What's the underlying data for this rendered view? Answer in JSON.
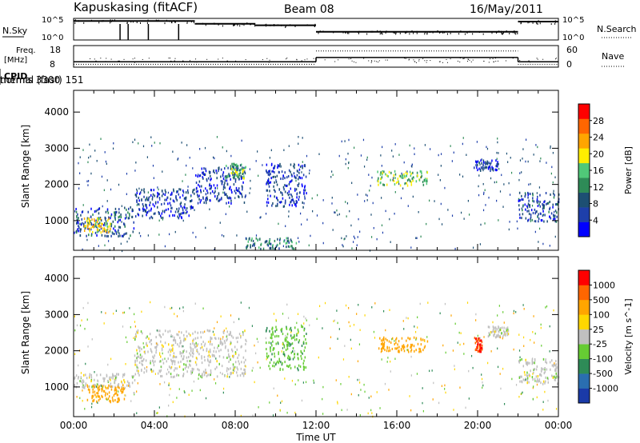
{
  "header": {
    "station": "Kapuskasing (fitACF)",
    "beam": "Beam 08",
    "date": "16/May/2011"
  },
  "strips": {
    "nsky_label": "N.Sky",
    "nsky_ticks": [
      "10^5",
      "10^0"
    ],
    "nsearch_label": "N.Search",
    "freq_label_line1": "Freq.",
    "freq_label_line2": "[MHz]",
    "freq_ticks": [
      "18",
      "8"
    ],
    "nave_label": "Nave",
    "nave_ticks": [
      "60",
      "0"
    ],
    "cpid_label": "CPID",
    "cpid_modes": [
      {
        "label": "themis 3300",
        "start_hour": 0,
        "end_hour": 6
      },
      {
        "label": "normal (fast) 151",
        "start_hour": 6,
        "end_hour": 24
      }
    ],
    "noise_sky": [
      {
        "start": 0,
        "end": 6,
        "level": 0.88
      },
      {
        "start": 6,
        "end": 9,
        "level": 0.75
      },
      {
        "start": 9,
        "end": 12,
        "level": 0.68
      },
      {
        "start": 12,
        "end": 22,
        "level": 0.38
      },
      {
        "start": 22,
        "end": 24,
        "level": 0.85
      }
    ],
    "frequency_mhz": [
      {
        "start": 0,
        "end": 12,
        "value": 10.5
      },
      {
        "start": 12,
        "end": 22,
        "value": 12.5
      },
      {
        "start": 22,
        "end": 24,
        "value": 10.5
      }
    ],
    "nave": [
      {
        "start": 0,
        "end": 12,
        "value": 8
      },
      {
        "start": 12,
        "end": 22,
        "value": 45
      },
      {
        "start": 22,
        "end": 24,
        "value": 8
      }
    ]
  },
  "chart_data": [
    {
      "type": "heatmap",
      "title": "",
      "xlabel": "Time UT",
      "ylabel": "Slant Range [km]",
      "xlim": [
        0,
        24
      ],
      "ylim": [
        180,
        4600
      ],
      "x_ticks": [
        "00:00",
        "04:00",
        "08:00",
        "12:00",
        "16:00",
        "20:00",
        "00:00"
      ],
      "y_ticks": [
        "1000",
        "2000",
        "3000",
        "4000"
      ],
      "colorbar": {
        "label": "Power [dB]",
        "ticks": [
          "28",
          "24",
          "20",
          "16",
          "12",
          "8",
          "4"
        ],
        "colors": [
          "#0000ff",
          "#1e3faa",
          "#1d4f73",
          "#2e8b57",
          "#50c878",
          "#ffee00",
          "#ffa500",
          "#ff6600",
          "#ff0000"
        ]
      },
      "regions": [
        {
          "t0": 0.0,
          "t1": 3.0,
          "r0": 600,
          "r1": 1400,
          "value": 8
        },
        {
          "t0": 0.5,
          "t1": 1.8,
          "r0": 700,
          "r1": 1100,
          "value": 22
        },
        {
          "t0": 3.0,
          "t1": 6.0,
          "r0": 1100,
          "r1": 1900,
          "value": 6
        },
        {
          "t0": 6.0,
          "t1": 8.5,
          "r0": 1500,
          "r1": 2500,
          "value": 6
        },
        {
          "t0": 7.5,
          "t1": 8.5,
          "r0": 2200,
          "r1": 2600,
          "value": 16
        },
        {
          "t0": 9.5,
          "t1": 11.5,
          "r0": 1400,
          "r1": 2600,
          "value": 6
        },
        {
          "t0": 8.5,
          "t1": 11.0,
          "r0": 250,
          "r1": 550,
          "value": 12
        },
        {
          "t0": 15.0,
          "t1": 17.5,
          "r0": 2000,
          "r1": 2400,
          "value": 18
        },
        {
          "t0": 19.8,
          "t1": 21.0,
          "r0": 2400,
          "r1": 2700,
          "value": 6
        },
        {
          "t0": 22.0,
          "t1": 24.0,
          "r0": 1000,
          "r1": 1800,
          "value": 8
        }
      ]
    },
    {
      "type": "heatmap",
      "title": "",
      "xlabel": "Time UT",
      "ylabel": "Slant Range [km]",
      "xlim": [
        0,
        24
      ],
      "ylim": [
        180,
        4600
      ],
      "x_ticks": [
        "00:00",
        "04:00",
        "08:00",
        "12:00",
        "16:00",
        "20:00",
        "00:00"
      ],
      "y_ticks": [
        "1000",
        "2000",
        "3000",
        "4000"
      ],
      "colorbar": {
        "label": "Velocity [m s^-1]",
        "ticks": [
          "1000",
          "500",
          "100",
          "25",
          "-25",
          "-100",
          "-500",
          "-1000"
        ],
        "colors": [
          "#1a3aa8",
          "#2a6eb0",
          "#2e8b57",
          "#66cc33",
          "#c0c0c0",
          "#ffd700",
          "#ffa500",
          "#ff6600",
          "#ff0000"
        ]
      },
      "regions": [
        {
          "t0": 0.0,
          "t1": 3.0,
          "r0": 1000,
          "r1": 1400,
          "value": 0
        },
        {
          "t0": 0.5,
          "t1": 2.5,
          "r0": 600,
          "r1": 1100,
          "value": -300
        },
        {
          "t0": 3.0,
          "t1": 8.5,
          "r0": 1300,
          "r1": 2600,
          "value": 0
        },
        {
          "t0": 9.5,
          "t1": 11.5,
          "r0": 1500,
          "r1": 2700,
          "value": 80
        },
        {
          "t0": 15.0,
          "t1": 17.5,
          "r0": 2000,
          "r1": 2400,
          "value": -300
        },
        {
          "t0": 19.8,
          "t1": 20.2,
          "r0": 2000,
          "r1": 2400,
          "value": -1000
        },
        {
          "t0": 20.5,
          "t1": 21.5,
          "r0": 2400,
          "r1": 2700,
          "value": 0
        },
        {
          "t0": 22.0,
          "t1": 24.0,
          "r0": 1100,
          "r1": 1800,
          "value": 0
        }
      ]
    }
  ]
}
